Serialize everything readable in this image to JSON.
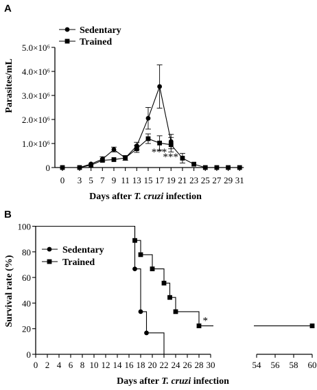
{
  "chart_data": [
    {
      "panel_label": "A",
      "type": "line",
      "ylabel": "Parasites/mL",
      "xlabel_prefix": "Days after ",
      "xlabel_italic": "T. cruzi",
      "xlabel_suffix": " infection",
      "ylim": [
        0,
        5000000
      ],
      "y_ticks": [
        {
          "value": 0,
          "label": "0"
        },
        {
          "value": 1000000,
          "label": "1.0×10⁶"
        },
        {
          "value": 2000000,
          "label": "2.0×10⁶"
        },
        {
          "value": 3000000,
          "label": "3.0×10⁶"
        },
        {
          "value": 4000000,
          "label": "4.0×10⁶"
        },
        {
          "value": 5000000,
          "label": "5.0×10⁶"
        }
      ],
      "x": [
        0,
        3,
        5,
        7,
        9,
        11,
        13,
        15,
        17,
        19,
        21,
        23,
        25,
        27,
        29,
        31
      ],
      "series": [
        {
          "name": "Sedentary",
          "marker": "circle",
          "x": [
            0,
            3,
            5,
            7,
            9,
            11,
            13,
            15,
            17,
            19
          ],
          "values": [
            0,
            0,
            150000,
            350000,
            750000,
            400000,
            900000,
            2050000,
            3370000,
            1080000
          ],
          "errors": [
            0,
            0,
            0,
            100000,
            100000,
            100000,
            150000,
            450000,
            900000,
            300000
          ]
        },
        {
          "name": "Trained",
          "marker": "square",
          "x": [
            0,
            3,
            5,
            7,
            9,
            11,
            13,
            15,
            17,
            19,
            21,
            23,
            25,
            27,
            29,
            31
          ],
          "values": [
            0,
            0,
            100000,
            300000,
            330000,
            400000,
            780000,
            1200000,
            1020000,
            950000,
            390000,
            140000,
            0,
            0,
            0,
            0
          ],
          "errors": [
            0,
            0,
            0,
            0,
            0,
            0,
            150000,
            200000,
            300000,
            300000,
            200000,
            0,
            0,
            0,
            0,
            0
          ]
        }
      ],
      "annotations": [
        {
          "text": "***",
          "x": 15,
          "y": 750000
        },
        {
          "text": "***",
          "x": 17,
          "y": 540000
        }
      ],
      "legend": "top-left"
    },
    {
      "panel_label": "B",
      "type": "line",
      "ylabel": "Survival rate (%)",
      "xlabel_prefix": "Days after ",
      "xlabel_italic": "T. cruzi",
      "xlabel_suffix": " infection",
      "ylim": [
        0,
        100
      ],
      "y_ticks": [
        0,
        20,
        40,
        60,
        80,
        100
      ],
      "x_ticks_left": [
        0,
        2,
        4,
        6,
        8,
        10,
        12,
        14,
        16,
        18,
        20,
        22,
        24,
        26,
        28,
        30
      ],
      "x_ticks_right": [
        54,
        56,
        58,
        60
      ],
      "x_break": [
        30,
        54
      ],
      "series": [
        {
          "name": "Sedentary",
          "marker": "circle",
          "steps": [
            [
              0,
              100
            ],
            [
              17,
              66.7
            ],
            [
              18,
              33.3
            ],
            [
              19,
              16.7
            ],
            [
              22,
              0
            ]
          ],
          "markers": [
            [
              17,
              66.7
            ],
            [
              18,
              33.3
            ],
            [
              19,
              16.7
            ]
          ]
        },
        {
          "name": "Trained",
          "marker": "square",
          "steps": [
            [
              0,
              100
            ],
            [
              17,
              88.9
            ],
            [
              18,
              77.8
            ],
            [
              20,
              66.7
            ],
            [
              22,
              55.6
            ],
            [
              23,
              44.4
            ],
            [
              24,
              33.3
            ],
            [
              28,
              22.2
            ],
            [
              60,
              22.2
            ]
          ],
          "markers": [
            [
              17,
              88.9
            ],
            [
              18,
              77.8
            ],
            [
              20,
              66.7
            ],
            [
              22,
              55.6
            ],
            [
              23,
              44.4
            ],
            [
              24,
              33.3
            ],
            [
              28,
              22.2
            ],
            [
              60,
              22.2
            ]
          ]
        }
      ],
      "annotations": [
        {
          "text": "*",
          "x": 28.5,
          "y": 27
        }
      ],
      "legend": "top-left"
    }
  ]
}
